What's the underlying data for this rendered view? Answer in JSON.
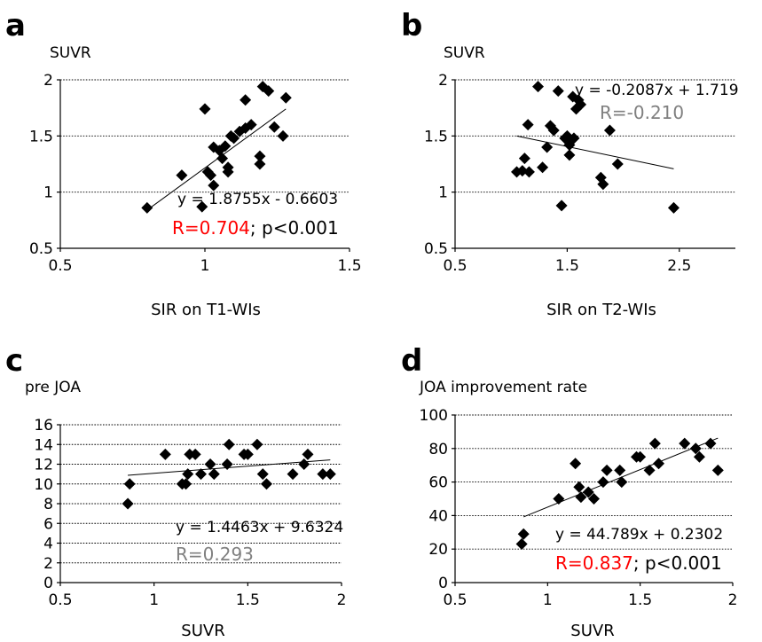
{
  "chart_data": [
    {
      "type": "scatter",
      "panel": "a",
      "ylabel": "SUVR",
      "xlabel": "SIR on T1-WIs",
      "xlim": [
        0.5,
        1.5
      ],
      "ylim": [
        0.5,
        2
      ],
      "xticks": [
        "0.5",
        "1",
        "1.5"
      ],
      "yticks": [
        "0.5",
        "1",
        "1.5",
        "2"
      ],
      "grid": "horizontal dashed",
      "trendline": {
        "slope": 1.8755,
        "intercept": -0.6603,
        "x": [
          0.8,
          1.28
        ]
      },
      "equation": "y = 1.8755x - 0.6603",
      "r_label": "R=0.704",
      "r_color": "#ff0000",
      "p_label": "; p<0.001",
      "points": [
        [
          0.8,
          0.86
        ],
        [
          0.92,
          1.15
        ],
        [
          0.99,
          0.87
        ],
        [
          1.0,
          1.74
        ],
        [
          1.01,
          1.18
        ],
        [
          1.02,
          1.15
        ],
        [
          1.03,
          1.06
        ],
        [
          1.03,
          1.4
        ],
        [
          1.05,
          1.37
        ],
        [
          1.06,
          1.3
        ],
        [
          1.07,
          1.41
        ],
        [
          1.08,
          1.22
        ],
        [
          1.08,
          1.18
        ],
        [
          1.09,
          1.5
        ],
        [
          1.1,
          1.48
        ],
        [
          1.12,
          1.54
        ],
        [
          1.14,
          1.57
        ],
        [
          1.14,
          1.82
        ],
        [
          1.16,
          1.6
        ],
        [
          1.19,
          1.32
        ],
        [
          1.19,
          1.25
        ],
        [
          1.2,
          1.94
        ],
        [
          1.22,
          1.9
        ],
        [
          1.24,
          1.58
        ],
        [
          1.27,
          1.5
        ],
        [
          1.28,
          1.84
        ]
      ]
    },
    {
      "type": "scatter",
      "panel": "b",
      "ylabel": "SUVR",
      "xlabel": "SIR on T2-WIs",
      "xlim": [
        0.5,
        3
      ],
      "ylim": [
        0.5,
        2
      ],
      "xticks": [
        "0.5",
        "1.5",
        "2.5"
      ],
      "yticks": [
        "0.5",
        "1",
        "1.5",
        "2"
      ],
      "grid": "horizontal dashed",
      "trendline": {
        "slope": -0.2087,
        "intercept": 1.719,
        "x": [
          1.05,
          2.45
        ]
      },
      "equation": "y = -0.2087x + 1.719",
      "r_label": "R=-0.210",
      "r_color": "#808080",
      "points": [
        [
          1.05,
          1.18
        ],
        [
          1.1,
          1.19
        ],
        [
          1.12,
          1.3
        ],
        [
          1.15,
          1.6
        ],
        [
          1.16,
          1.18
        ],
        [
          1.24,
          1.94
        ],
        [
          1.28,
          1.22
        ],
        [
          1.32,
          1.4
        ],
        [
          1.35,
          1.59
        ],
        [
          1.38,
          1.55
        ],
        [
          1.42,
          1.9
        ],
        [
          1.45,
          0.88
        ],
        [
          1.48,
          1.48
        ],
        [
          1.5,
          1.5
        ],
        [
          1.52,
          1.42
        ],
        [
          1.52,
          1.33
        ],
        [
          1.55,
          1.85
        ],
        [
          1.56,
          1.48
        ],
        [
          1.58,
          1.74
        ],
        [
          1.6,
          1.82
        ],
        [
          1.62,
          1.78
        ],
        [
          1.8,
          1.13
        ],
        [
          1.82,
          1.07
        ],
        [
          1.88,
          1.55
        ],
        [
          1.95,
          1.25
        ],
        [
          2.45,
          0.86
        ]
      ]
    },
    {
      "type": "scatter",
      "panel": "c",
      "ylabel": "pre JOA",
      "xlabel": "SUVR",
      "xlim": [
        0.5,
        2
      ],
      "ylim": [
        0,
        16
      ],
      "xticks": [
        "0.5",
        "1",
        "1.5",
        "2"
      ],
      "yticks": [
        "0",
        "2",
        "4",
        "6",
        "8",
        "10",
        "12",
        "14",
        "16"
      ],
      "grid": "horizontal dashed",
      "trendline": {
        "slope": 1.4463,
        "intercept": 9.6324,
        "x": [
          0.86,
          1.94
        ]
      },
      "equation": "y = 1.4463x + 9.6324",
      "r_label": "R=0.293",
      "r_color": "#808080",
      "points": [
        [
          0.86,
          8
        ],
        [
          0.87,
          10
        ],
        [
          1.06,
          13
        ],
        [
          1.15,
          10
        ],
        [
          1.17,
          10
        ],
        [
          1.18,
          11
        ],
        [
          1.19,
          13
        ],
        [
          1.22,
          13
        ],
        [
          1.25,
          11
        ],
        [
          1.3,
          12
        ],
        [
          1.32,
          11
        ],
        [
          1.39,
          12
        ],
        [
          1.4,
          14
        ],
        [
          1.48,
          13
        ],
        [
          1.5,
          13
        ],
        [
          1.55,
          14
        ],
        [
          1.58,
          11
        ],
        [
          1.6,
          10
        ],
        [
          1.74,
          11
        ],
        [
          1.8,
          12
        ],
        [
          1.82,
          13
        ],
        [
          1.9,
          11
        ],
        [
          1.94,
          11
        ]
      ]
    },
    {
      "type": "scatter",
      "panel": "d",
      "ylabel": "JOA improvement rate",
      "xlabel": "SUVR",
      "xlim": [
        0.5,
        2
      ],
      "ylim": [
        0,
        100
      ],
      "xticks": [
        "0.5",
        "1",
        "1.5",
        "2"
      ],
      "yticks": [
        "0",
        "20",
        "40",
        "60",
        "80",
        "100"
      ],
      "grid": "horizontal dashed",
      "trendline": {
        "slope": 44.789,
        "intercept": 0.2302,
        "x": [
          0.87,
          1.92
        ]
      },
      "equation": "y = 44.789x + 0.2302",
      "r_label": "R=0.837",
      "r_color": "#ff0000",
      "p_label": "; p<0.001",
      "points": [
        [
          0.86,
          23
        ],
        [
          0.87,
          29
        ],
        [
          1.06,
          50
        ],
        [
          1.15,
          71
        ],
        [
          1.17,
          57
        ],
        [
          1.18,
          51
        ],
        [
          1.22,
          54
        ],
        [
          1.25,
          50
        ],
        [
          1.3,
          60
        ],
        [
          1.32,
          67
        ],
        [
          1.39,
          67
        ],
        [
          1.4,
          60
        ],
        [
          1.48,
          75
        ],
        [
          1.5,
          75
        ],
        [
          1.55,
          67
        ],
        [
          1.58,
          83
        ],
        [
          1.6,
          71
        ],
        [
          1.74,
          83
        ],
        [
          1.8,
          80
        ],
        [
          1.82,
          75
        ],
        [
          1.88,
          83
        ],
        [
          1.92,
          67
        ]
      ]
    }
  ]
}
